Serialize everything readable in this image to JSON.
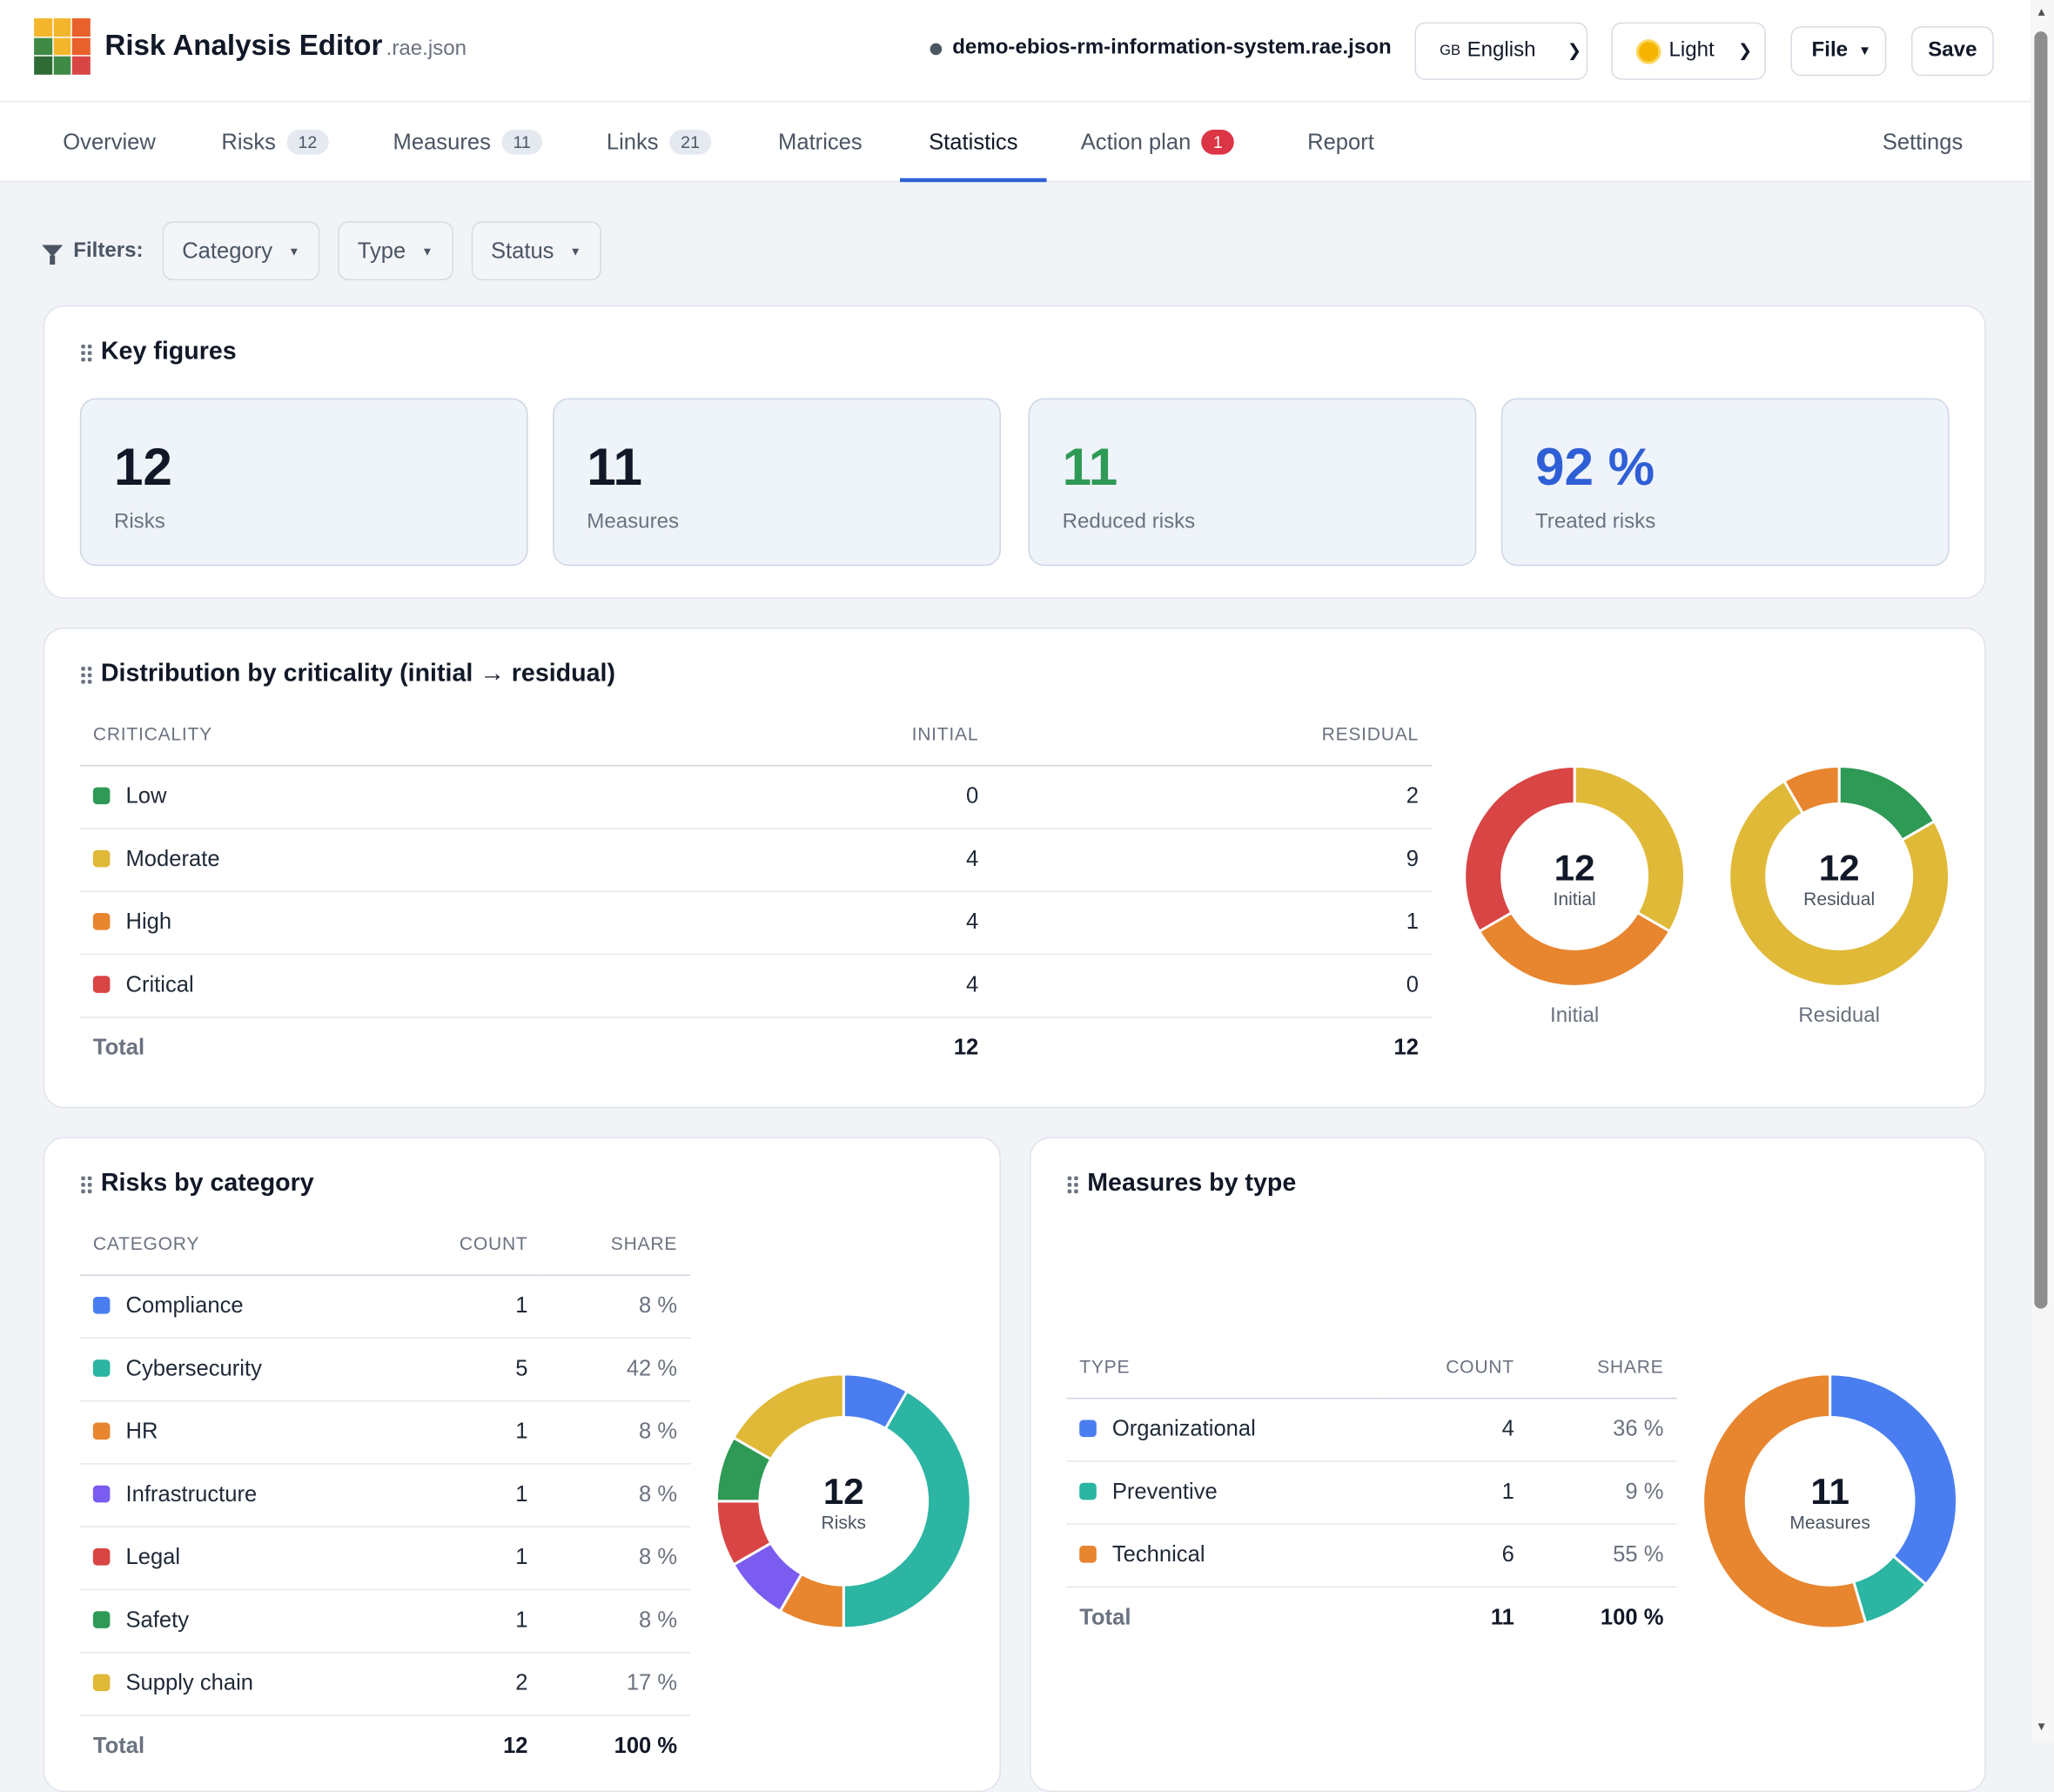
{
  "header": {
    "title": "Risk Analysis Editor",
    "subtitle": "· .rae.json",
    "filename": "demo-ebios-rm-information-system.rae.json",
    "language": {
      "flag": "GB",
      "label": "English"
    },
    "theme": "Light",
    "file_label": "File",
    "save_label": "Save"
  },
  "tabs": [
    {
      "label": "Overview"
    },
    {
      "label": "Risks",
      "badge": "12"
    },
    {
      "label": "Measures",
      "badge": "11"
    },
    {
      "label": "Links",
      "badge": "21"
    },
    {
      "label": "Matrices"
    },
    {
      "label": "Statistics"
    },
    {
      "label": "Action plan",
      "badge": "1"
    },
    {
      "label": "Report"
    },
    {
      "label": "Settings"
    }
  ],
  "filters": {
    "label": "Filters:",
    "items": [
      "Category",
      "Type",
      "Status"
    ]
  },
  "key_figures": {
    "title": "Key figures",
    "cards": [
      {
        "value": "12",
        "label": "Risks",
        "color": "#111827"
      },
      {
        "value": "11",
        "label": "Measures",
        "color": "#111827"
      },
      {
        "value": "11",
        "label": "Reduced risks",
        "color": "#2e9a55"
      },
      {
        "value": "92 %",
        "label": "Treated risks",
        "color": "#2f5fd6"
      }
    ]
  },
  "criticality": {
    "title": "Distribution by criticality (initial → residual)",
    "headers": [
      "CRITICALITY",
      "INITIAL",
      "RESIDUAL"
    ],
    "rows": [
      {
        "label": "Low",
        "color": "#2e9a55",
        "initial": "0",
        "residual": "2"
      },
      {
        "label": "Moderate",
        "color": "#e0b938",
        "initial": "4",
        "residual": "9"
      },
      {
        "label": "High",
        "color": "#e8852f",
        "initial": "4",
        "residual": "1"
      },
      {
        "label": "Critical",
        "color": "#d94545",
        "initial": "4",
        "residual": "0"
      }
    ],
    "total": {
      "label": "Total",
      "initial": "12",
      "residual": "12"
    },
    "donut_initial": {
      "value": "12",
      "label": "Initial",
      "caption": "Initial"
    },
    "donut_residual": {
      "value": "12",
      "label": "Residual",
      "caption": "Residual"
    }
  },
  "by_category": {
    "title": "Risks by category",
    "headers": [
      "CATEGORY",
      "COUNT",
      "SHARE"
    ],
    "rows": [
      {
        "label": "Compliance",
        "color": "#4a7ef0",
        "count": "1",
        "share": "8 %"
      },
      {
        "label": "Cybersecurity",
        "color": "#2bb5a2",
        "count": "5",
        "share": "42 %"
      },
      {
        "label": "HR",
        "color": "#e8852f",
        "count": "1",
        "share": "8 %"
      },
      {
        "label": "Infrastructure",
        "color": "#7b5cf0",
        "count": "1",
        "share": "8 %"
      },
      {
        "label": "Legal",
        "color": "#d94545",
        "count": "1",
        "share": "8 %"
      },
      {
        "label": "Safety",
        "color": "#2e9a55",
        "count": "1",
        "share": "8 %"
      },
      {
        "label": "Supply chain",
        "color": "#e0b938",
        "count": "2",
        "share": "17 %"
      }
    ],
    "total": {
      "label": "Total",
      "count": "12",
      "share": "100 %"
    },
    "donut": {
      "value": "12",
      "label": "Risks"
    }
  },
  "by_type": {
    "title": "Measures by type",
    "headers": [
      "TYPE",
      "COUNT",
      "SHARE"
    ],
    "rows": [
      {
        "label": "Organizational",
        "color": "#4a7ef0",
        "count": "4",
        "share": "36 %"
      },
      {
        "label": "Preventive",
        "color": "#2bb5a2",
        "count": "1",
        "share": "9 %"
      },
      {
        "label": "Technical",
        "color": "#e8852f",
        "count": "6",
        "share": "55 %"
      }
    ],
    "total": {
      "label": "Total",
      "count": "11",
      "share": "100 %"
    },
    "donut": {
      "value": "11",
      "label": "Measures"
    }
  },
  "chart_data": [
    {
      "type": "pie",
      "categories": [
        "Low",
        "Moderate",
        "High",
        "Critical"
      ],
      "values": [
        0,
        4,
        4,
        4
      ]
    },
    {
      "type": "pie",
      "categories": [
        "Low",
        "Moderate",
        "High",
        "Critical"
      ],
      "values": [
        2,
        9,
        1,
        0
      ]
    },
    {
      "type": "pie",
      "categories": [
        "Compliance",
        "Cybersecurity",
        "HR",
        "Infrastructure",
        "Legal",
        "Safety",
        "Supply chain"
      ],
      "values": [
        1,
        5,
        1,
        1,
        1,
        1,
        2
      ]
    },
    {
      "type": "pie",
      "categories": [
        "Organizational",
        "Preventive",
        "Technical"
      ],
      "values": [
        4,
        1,
        6
      ]
    }
  ]
}
